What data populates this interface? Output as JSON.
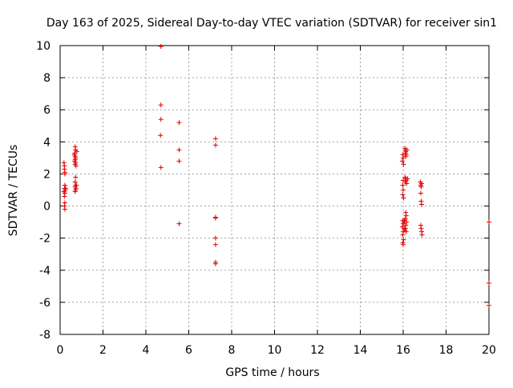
{
  "chart_data": {
    "type": "scatter",
    "title": "Day 163 of 2025, Sidereal Day-to-day VTEC variation (SDTVAR) for receiver sin1",
    "xlabel": "GPS time / hours",
    "ylabel": "SDTVAR / TECUs",
    "xlim": [
      0,
      20
    ],
    "ylim": [
      -8,
      10
    ],
    "xticks": [
      "0",
      "2",
      "4",
      "6",
      "8",
      "10",
      "12",
      "14",
      "16",
      "18",
      "20"
    ],
    "yticks": [
      "-8",
      "-6",
      "-4",
      "-2",
      "0",
      "2",
      "4",
      "6",
      "8",
      "10"
    ],
    "grid": true,
    "marker": "plus",
    "color": "#e00000",
    "series": [
      {
        "name": "SDTVAR",
        "points": [
          [
            0.18,
            2.7
          ],
          [
            0.2,
            2.5
          ],
          [
            0.2,
            2.3
          ],
          [
            0.22,
            2.1
          ],
          [
            0.22,
            2.0
          ],
          [
            0.22,
            1.3
          ],
          [
            0.2,
            1.1
          ],
          [
            0.24,
            1.0
          ],
          [
            0.22,
            0.8
          ],
          [
            0.2,
            0.6
          ],
          [
            0.22,
            0.2
          ],
          [
            0.2,
            0.0
          ],
          [
            0.22,
            -0.2
          ],
          [
            0.26,
            1.1
          ],
          [
            0.18,
            0.9
          ],
          [
            0.7,
            3.7
          ],
          [
            0.72,
            3.5
          ],
          [
            0.68,
            3.3
          ],
          [
            0.7,
            3.1
          ],
          [
            0.72,
            3.0
          ],
          [
            0.7,
            2.9
          ],
          [
            0.68,
            2.8
          ],
          [
            0.72,
            2.7
          ],
          [
            0.7,
            2.6
          ],
          [
            0.74,
            2.5
          ],
          [
            0.72,
            1.8
          ],
          [
            0.7,
            1.5
          ],
          [
            0.72,
            1.3
          ],
          [
            0.7,
            1.2
          ],
          [
            0.74,
            1.1
          ],
          [
            0.72,
            1.0
          ],
          [
            0.7,
            0.9
          ],
          [
            0.76,
            1.3
          ],
          [
            0.78,
            3.4
          ],
          [
            0.66,
            3.2
          ],
          [
            4.7,
            9.95
          ],
          [
            4.7,
            6.3
          ],
          [
            4.7,
            5.4
          ],
          [
            4.68,
            4.4
          ],
          [
            4.7,
            2.4
          ],
          [
            5.55,
            5.2
          ],
          [
            5.55,
            3.5
          ],
          [
            5.55,
            2.8
          ],
          [
            5.55,
            -1.1
          ],
          [
            7.25,
            4.2
          ],
          [
            7.25,
            3.8
          ],
          [
            7.25,
            -0.7
          ],
          [
            7.25,
            -0.75
          ],
          [
            7.25,
            -2.0
          ],
          [
            7.25,
            -2.4
          ],
          [
            7.25,
            -3.5
          ],
          [
            7.25,
            -3.6
          ],
          [
            15.98,
            3.2
          ],
          [
            16.0,
            3.0
          ],
          [
            15.96,
            2.8
          ],
          [
            16.02,
            2.6
          ],
          [
            16.0,
            1.6
          ],
          [
            15.98,
            1.3
          ],
          [
            16.0,
            1.0
          ],
          [
            15.98,
            0.7
          ],
          [
            16.02,
            0.5
          ],
          [
            15.98,
            -0.9
          ],
          [
            16.0,
            -1.1
          ],
          [
            15.96,
            -1.3
          ],
          [
            16.0,
            -1.6
          ],
          [
            15.98,
            -1.8
          ],
          [
            16.02,
            -2.1
          ],
          [
            15.98,
            -2.3
          ],
          [
            16.0,
            -2.4
          ],
          [
            16.04,
            -1.0
          ],
          [
            16.04,
            -1.4
          ],
          [
            16.08,
            3.6
          ],
          [
            16.1,
            3.5
          ],
          [
            16.12,
            3.4
          ],
          [
            16.1,
            3.3
          ],
          [
            16.14,
            3.2
          ],
          [
            16.12,
            3.1
          ],
          [
            16.08,
            1.8
          ],
          [
            16.12,
            1.7
          ],
          [
            16.14,
            1.6
          ],
          [
            16.1,
            1.5
          ],
          [
            16.16,
            1.4
          ],
          [
            16.12,
            -0.4
          ],
          [
            16.14,
            -0.6
          ],
          [
            16.1,
            -0.8
          ],
          [
            16.16,
            -1.0
          ],
          [
            16.12,
            -1.2
          ],
          [
            16.1,
            -1.4
          ],
          [
            16.14,
            -1.6
          ],
          [
            16.18,
            3.5
          ],
          [
            16.2,
            1.7
          ],
          [
            16.06,
            -0.9
          ],
          [
            16.08,
            -1.5
          ],
          [
            16.8,
            1.5
          ],
          [
            16.82,
            1.3
          ],
          [
            16.84,
            1.2
          ],
          [
            16.86,
            1.4
          ],
          [
            16.82,
            0.8
          ],
          [
            16.84,
            0.3
          ],
          [
            16.86,
            0.1
          ],
          [
            16.82,
            -1.2
          ],
          [
            16.84,
            -1.4
          ],
          [
            16.86,
            -1.6
          ],
          [
            16.88,
            -1.8
          ],
          [
            20.0,
            -1.0
          ],
          [
            20.0,
            -4.8
          ],
          [
            20.0,
            -6.2
          ]
        ]
      }
    ]
  }
}
